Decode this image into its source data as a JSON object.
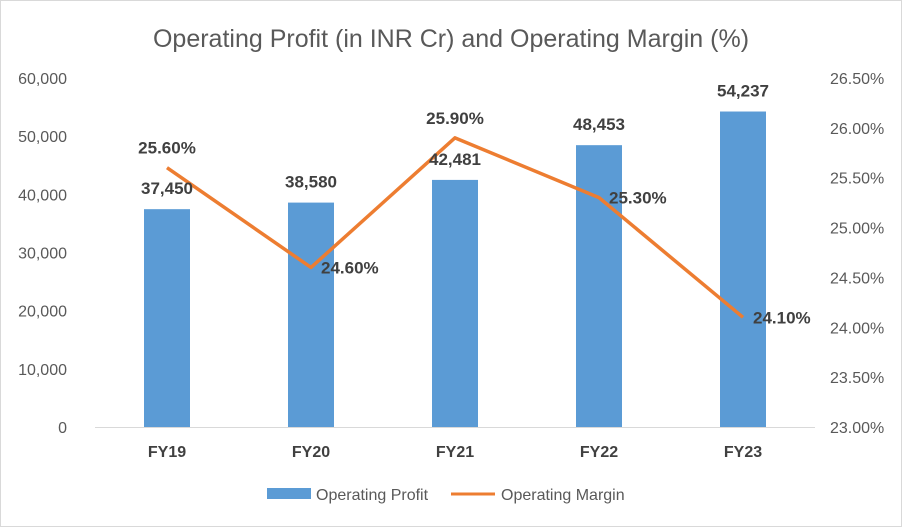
{
  "chart_data": {
    "type": "bar+line",
    "title": "Operating Profit (in INR Cr) and Operating Margin (%)",
    "categories": [
      "FY19",
      "FY20",
      "FY21",
      "FY22",
      "FY23"
    ],
    "series": [
      {
        "name": "Operating Profit",
        "type": "bar",
        "axis": "left",
        "color": "#5b9bd5",
        "values": [
          37450,
          38580,
          42481,
          48453,
          54237
        ],
        "labels": [
          "37,450",
          "38,580",
          "42,481",
          "48,453",
          "54,237"
        ]
      },
      {
        "name": "Operating Margin",
        "type": "line",
        "axis": "right",
        "color": "#ed7d31",
        "values": [
          25.6,
          24.6,
          25.9,
          25.3,
          24.1
        ],
        "labels": [
          "25.60%",
          "24.60%",
          "25.90%",
          "25.30%",
          "24.10%"
        ]
      }
    ],
    "y_left": {
      "range": [
        0,
        60000
      ],
      "ticks": [
        "0",
        "10,000",
        "20,000",
        "30,000",
        "40,000",
        "50,000",
        "60,000"
      ]
    },
    "y_right": {
      "range": [
        23.0,
        26.5
      ],
      "ticks": [
        "23.00%",
        "23.50%",
        "24.00%",
        "24.50%",
        "25.00%",
        "25.50%",
        "26.00%",
        "26.50%"
      ]
    },
    "legend": {
      "position": "bottom",
      "items": [
        "Operating Profit",
        "Operating Margin"
      ]
    },
    "grid": false
  }
}
